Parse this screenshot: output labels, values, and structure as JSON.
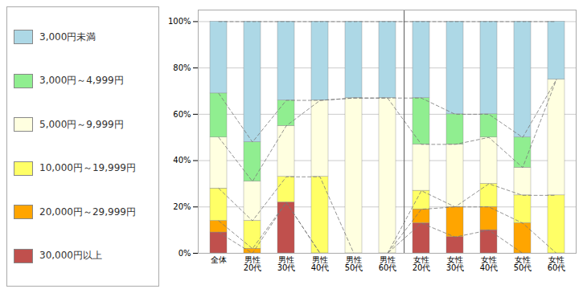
{
  "chart_data": {
    "type": "bar",
    "stacked": true,
    "grid": true,
    "categories": [
      "全体",
      "男性\n20代",
      "男性\n30代",
      "男性\n40代",
      "男性\n50代",
      "男性\n60代",
      "女性\n20代",
      "女性\n30代",
      "女性\n40代",
      "女性\n50代",
      "女性\n60代"
    ],
    "series": [
      {
        "name": "30,000円以上",
        "color": "#c0504d",
        "values": [
          9,
          0,
          22,
          0,
          0,
          0,
          13,
          7,
          10,
          0,
          0
        ]
      },
      {
        "name": "20,000円～29,999円",
        "color": "#ffa500",
        "values": [
          5,
          2,
          0,
          0,
          0,
          0,
          6,
          13,
          10,
          13,
          0
        ]
      },
      {
        "name": "10,000円～19,999円",
        "color": "#ffff66",
        "values": [
          14,
          12,
          11,
          33,
          0,
          0,
          8,
          0,
          10,
          12,
          25
        ]
      },
      {
        "name": "5,000円～9,999円",
        "color": "#ffffe0",
        "values": [
          22,
          17,
          22,
          33,
          67,
          67,
          20,
          27,
          20,
          12,
          50
        ]
      },
      {
        "name": "3,000円～4,999円",
        "color": "#90ee90",
        "values": [
          19,
          17,
          11,
          0,
          0,
          0,
          20,
          13,
          10,
          13,
          0
        ]
      },
      {
        "name": "3,000円未満",
        "color": "#add8e6",
        "values": [
          31,
          52,
          34,
          34,
          33,
          33,
          33,
          40,
          40,
          50,
          25
        ]
      }
    ],
    "ylim": [
      0,
      105
    ],
    "yticks": [
      {
        "value": 0,
        "label": "0%"
      },
      {
        "value": 20,
        "label": "20%"
      },
      {
        "value": 40,
        "label": "40%"
      },
      {
        "value": 60,
        "label": "60%"
      },
      {
        "value": 80,
        "label": "80%"
      },
      {
        "value": 100,
        "label": "100%"
      }
    ]
  }
}
